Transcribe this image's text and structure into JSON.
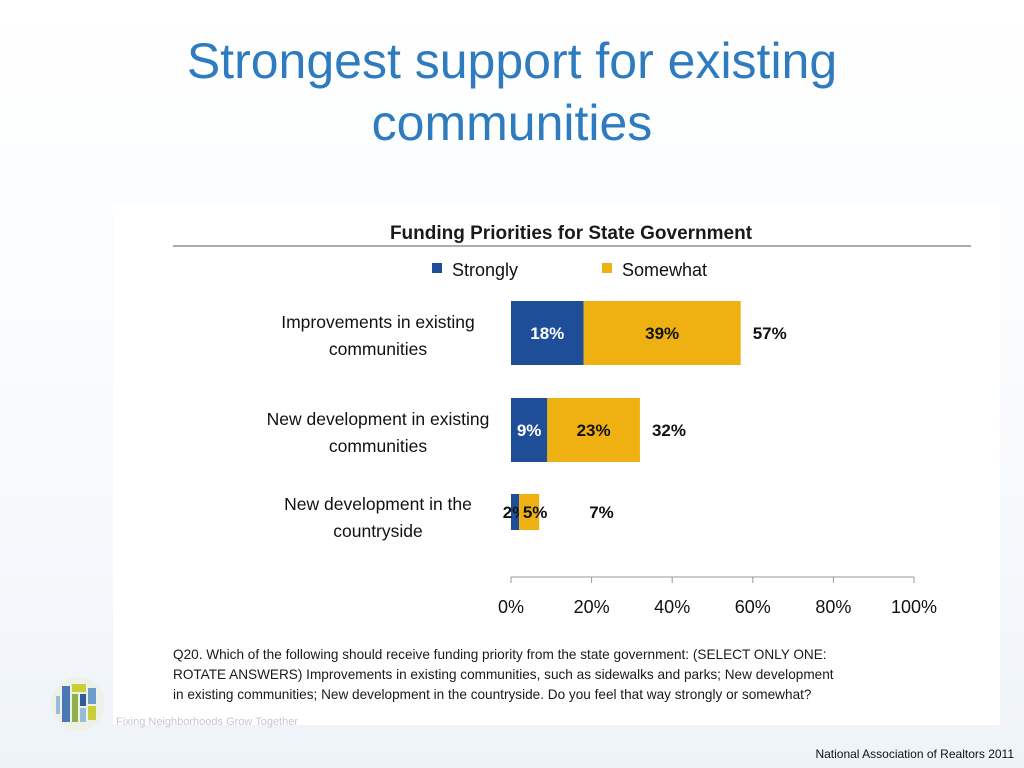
{
  "slide": {
    "title_line1": "Strongest support for existing",
    "title_line2": "communities",
    "source": "National Association of Realtors 2011",
    "tagline": "Fixing Neighborhoods Grow Together"
  },
  "colors": {
    "strongly": "#1f4e99",
    "somewhat": "#eeb111",
    "title": "#2e7bbf"
  },
  "chart_data": {
    "type": "bar",
    "orientation": "horizontal",
    "stacked": true,
    "title": "Funding Priorities for State Government",
    "categories": [
      [
        "Improvements in existing",
        "communities"
      ],
      [
        "New development in existing",
        "communities"
      ],
      [
        "New development in the",
        "countryside"
      ]
    ],
    "series": [
      {
        "name": "Strongly",
        "values": [
          18,
          9,
          2
        ],
        "labels": [
          "18%",
          "9%",
          "2%"
        ]
      },
      {
        "name": "Somewhat",
        "values": [
          39,
          23,
          5
        ],
        "labels": [
          "39%",
          "23%",
          "5%"
        ]
      }
    ],
    "totals": [
      57,
      32,
      7
    ],
    "total_labels": [
      "57%",
      "32%",
      "7%"
    ],
    "xlim": [
      0,
      100
    ],
    "xticks": [
      "0%",
      "20%",
      "40%",
      "60%",
      "80%",
      "100%"
    ],
    "legend_position": "top",
    "grid": false,
    "footnote": [
      "Q20. Which of the following should receive funding priority from the state government: (SELECT ONLY ONE:",
      "ROTATE ANSWERS) Improvements in existing communities, such as sidewalks and parks; New development",
      "in existing communities; New development in the countryside. Do you feel that way strongly or somewhat?"
    ]
  }
}
